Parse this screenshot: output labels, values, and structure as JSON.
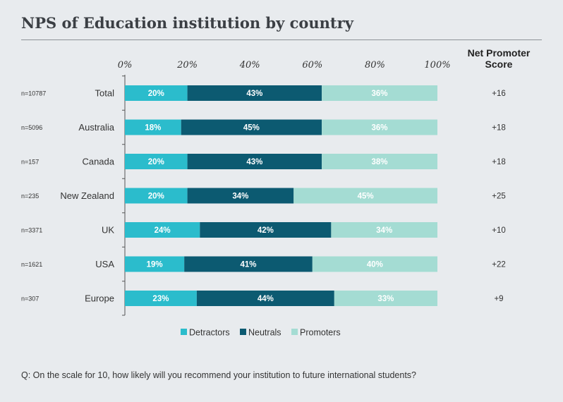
{
  "title": "NPS of Education institution by country",
  "nps_header": "Net Promoter Score",
  "question": "Q: On the scale for 10, how likely will you recommend your institution to future international students?",
  "colors": {
    "detractors": "#2bbccc",
    "neutrals": "#0c5a71",
    "promoters": "#a4dcd3"
  },
  "chart_data": {
    "type": "bar",
    "stacked": true,
    "orientation": "horizontal",
    "x_ticks": [
      "0%",
      "20%",
      "40%",
      "60%",
      "80%",
      "100%"
    ],
    "xlim": [
      0,
      100
    ],
    "legend_position": "bottom",
    "categories": [
      "Total",
      "Australia",
      "Canada",
      "New Zealand",
      "UK",
      "USA",
      "Europe"
    ],
    "sample_sizes": [
      "n=10787",
      "n=5096",
      "n=157",
      "n=235",
      "n=3371",
      "n=1621",
      "n=307"
    ],
    "series": [
      {
        "name": "Detractors",
        "values": [
          20,
          18,
          20,
          20,
          24,
          19,
          23
        ],
        "labels": [
          "20%",
          "18%",
          "20%",
          "20%",
          "24%",
          "19%",
          "23%"
        ]
      },
      {
        "name": "Neutrals",
        "values": [
          43,
          45,
          43,
          34,
          42,
          41,
          44
        ],
        "labels": [
          "43%",
          "45%",
          "43%",
          "34%",
          "42%",
          "41%",
          "44%"
        ]
      },
      {
        "name": "Promoters",
        "values": [
          36,
          36,
          38,
          45,
          34,
          40,
          33
        ],
        "labels": [
          "36%",
          "36%",
          "38%",
          "45%",
          "34%",
          "40%",
          "33%"
        ]
      }
    ],
    "net_promoter_score": [
      "+16",
      "+18",
      "+18",
      "+25",
      "+10",
      "+22",
      "+9"
    ]
  }
}
